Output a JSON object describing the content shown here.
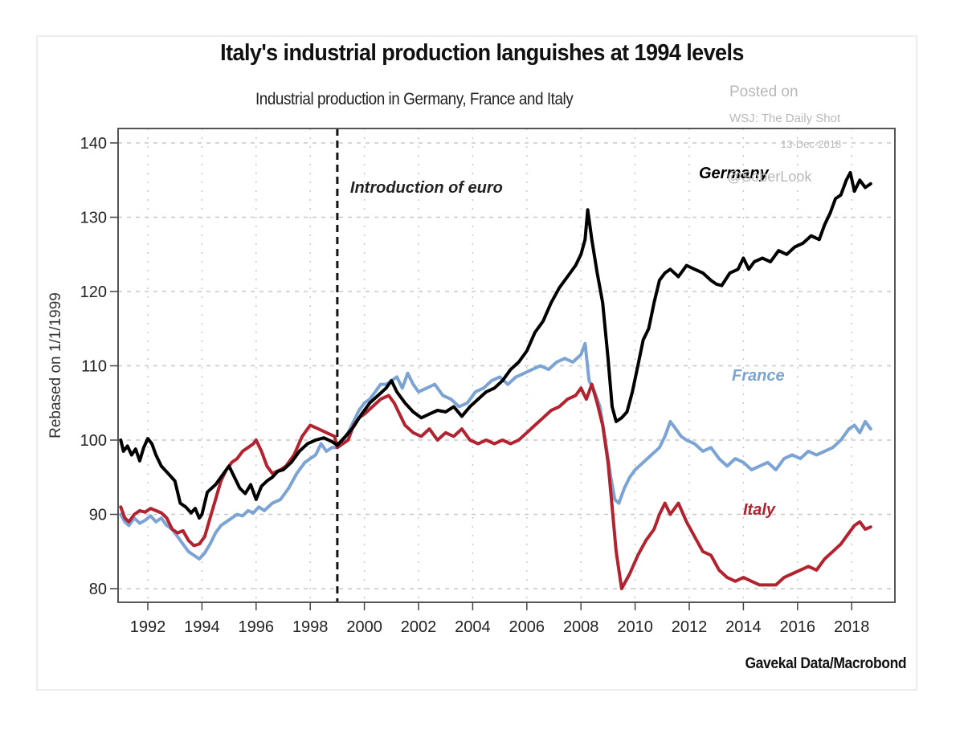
{
  "chart_data": {
    "type": "line",
    "title": "Italy's industrial production languishes at 1994 levels",
    "subtitle": "Industrial production in Germany, France and Italy",
    "xlabel": "",
    "ylabel": "Rebased on 1/1/1999",
    "xlim": [
      1990.9,
      2019.6
    ],
    "ylim": [
      78,
      142
    ],
    "yticks": [
      80,
      90,
      100,
      110,
      120,
      130,
      140
    ],
    "xticks": [
      1992,
      1994,
      1996,
      1998,
      2000,
      2002,
      2004,
      2006,
      2008,
      2010,
      2012,
      2014,
      2016,
      2018
    ],
    "grid": true,
    "source": "Gavekal Data/Macrobond",
    "annotations": [
      {
        "text": "Introduction of euro",
        "x": 1999.0,
        "type": "vertical-dashed-line"
      }
    ],
    "series": [
      {
        "name": "Germany",
        "color": "#000000",
        "label_position": "top-right",
        "x": [
          1991.0,
          1991.1,
          1991.25,
          1991.4,
          1991.55,
          1991.7,
          1991.85,
          1992.0,
          1992.15,
          1992.3,
          1992.5,
          1992.75,
          1993.0,
          1993.2,
          1993.4,
          1993.6,
          1993.75,
          1993.9,
          1994.0,
          1994.2,
          1994.5,
          1994.8,
          1995.0,
          1995.2,
          1995.4,
          1995.6,
          1995.8,
          1996.0,
          1996.2,
          1996.4,
          1996.6,
          1996.8,
          1997.0,
          1997.3,
          1997.6,
          1997.9,
          1998.2,
          1998.5,
          1998.8,
          1999.0,
          1999.3,
          1999.6,
          1999.9,
          2000.2,
          2000.5,
          2000.8,
          2001.0,
          2001.2,
          2001.5,
          2001.8,
          2002.1,
          2002.4,
          2002.7,
          2003.0,
          2003.3,
          2003.6,
          2003.9,
          2004.2,
          2004.5,
          2004.8,
          2005.1,
          2005.4,
          2005.7,
          2006.0,
          2006.3,
          2006.6,
          2006.9,
          2007.2,
          2007.5,
          2007.8,
          2008.0,
          2008.15,
          2008.25,
          2008.4,
          2008.6,
          2008.8,
          2009.0,
          2009.15,
          2009.3,
          2009.5,
          2009.7,
          2009.9,
          2010.1,
          2010.3,
          2010.5,
          2010.7,
          2010.9,
          2011.1,
          2011.3,
          2011.6,
          2011.9,
          2012.2,
          2012.5,
          2012.8,
          2013.0,
          2013.2,
          2013.5,
          2013.8,
          2014.0,
          2014.2,
          2014.4,
          2014.7,
          2015.0,
          2015.3,
          2015.6,
          2015.9,
          2016.2,
          2016.5,
          2016.8,
          2017.0,
          2017.2,
          2017.4,
          2017.6,
          2017.8,
          2017.95,
          2018.1,
          2018.3,
          2018.5,
          2018.7
        ],
        "values": [
          100.0,
          98.5,
          99.2,
          98.0,
          98.8,
          97.2,
          99.0,
          100.2,
          99.5,
          98.0,
          96.5,
          95.5,
          94.5,
          91.5,
          91.0,
          90.2,
          90.8,
          89.5,
          90.0,
          93.0,
          94.0,
          95.5,
          96.5,
          95.0,
          93.5,
          92.8,
          94.0,
          92.0,
          93.8,
          94.5,
          95.0,
          95.8,
          96.0,
          97.0,
          98.5,
          99.5,
          100.0,
          100.3,
          99.8,
          99.3,
          100.5,
          101.8,
          103.5,
          105.0,
          106.0,
          107.0,
          108.0,
          106.5,
          105.0,
          103.8,
          103.0,
          103.5,
          104.0,
          103.8,
          104.5,
          103.2,
          104.5,
          105.5,
          106.5,
          107.0,
          108.0,
          109.5,
          110.5,
          112.0,
          114.5,
          116.0,
          118.5,
          120.5,
          122.0,
          123.5,
          125.0,
          127.0,
          131.0,
          127.0,
          122.5,
          118.5,
          111.0,
          104.5,
          102.5,
          103.0,
          103.8,
          106.5,
          110.0,
          113.5,
          115.0,
          118.5,
          121.5,
          122.5,
          123.0,
          122.0,
          123.5,
          123.0,
          122.5,
          121.5,
          121.0,
          120.8,
          122.5,
          123.0,
          124.5,
          123.0,
          124.0,
          124.5,
          124.0,
          125.5,
          125.0,
          126.0,
          126.5,
          127.5,
          127.0,
          129.0,
          130.5,
          132.5,
          133.0,
          135.0,
          136.0,
          133.5,
          135.0,
          134.0,
          134.5
        ]
      },
      {
        "name": "France",
        "color": "#7ba3d4",
        "label_position": "middle-right",
        "x": [
          1991.0,
          1991.15,
          1991.3,
          1991.5,
          1991.7,
          1991.9,
          1992.1,
          1992.3,
          1992.5,
          1992.7,
          1992.9,
          1993.1,
          1993.3,
          1993.5,
          1993.7,
          1993.9,
          1994.1,
          1994.3,
          1994.5,
          1994.7,
          1994.9,
          1995.1,
          1995.3,
          1995.5,
          1995.7,
          1995.9,
          1996.1,
          1996.3,
          1996.6,
          1996.9,
          1997.2,
          1997.5,
          1997.8,
          1998.0,
          1998.2,
          1998.4,
          1998.6,
          1998.8,
          1999.0,
          1999.2,
          1999.4,
          1999.6,
          1999.8,
          2000.0,
          2000.2,
          2000.4,
          2000.6,
          2000.8,
          2001.0,
          2001.2,
          2001.4,
          2001.6,
          2001.8,
          2002.0,
          2002.3,
          2002.6,
          2002.9,
          2003.2,
          2003.5,
          2003.8,
          2004.1,
          2004.4,
          2004.7,
          2005.0,
          2005.3,
          2005.6,
          2005.9,
          2006.2,
          2006.5,
          2006.8,
          2007.1,
          2007.4,
          2007.7,
          2008.0,
          2008.15,
          2008.3,
          2008.5,
          2008.7,
          2008.9,
          2009.1,
          2009.25,
          2009.4,
          2009.6,
          2009.8,
          2010.0,
          2010.3,
          2010.6,
          2010.9,
          2011.1,
          2011.3,
          2011.5,
          2011.7,
          2011.9,
          2012.2,
          2012.5,
          2012.8,
          2013.1,
          2013.4,
          2013.7,
          2014.0,
          2014.3,
          2014.6,
          2014.9,
          2015.2,
          2015.5,
          2015.8,
          2016.1,
          2016.4,
          2016.7,
          2017.0,
          2017.3,
          2017.6,
          2017.9,
          2018.1,
          2018.3,
          2018.5,
          2018.7
        ],
        "values": [
          90.0,
          89.0,
          88.5,
          89.5,
          88.8,
          89.2,
          89.8,
          89.0,
          89.5,
          88.5,
          88.0,
          87.0,
          86.0,
          85.0,
          84.5,
          84.0,
          84.8,
          86.0,
          87.5,
          88.5,
          89.0,
          89.5,
          90.0,
          89.8,
          90.5,
          90.2,
          91.0,
          90.5,
          91.5,
          92.0,
          93.5,
          95.5,
          97.0,
          97.5,
          98.0,
          99.5,
          98.5,
          99.0,
          99.0,
          99.8,
          101.0,
          102.5,
          104.0,
          105.0,
          105.5,
          106.5,
          107.5,
          107.5,
          108.0,
          108.5,
          107.0,
          109.0,
          107.5,
          106.5,
          107.0,
          107.5,
          106.0,
          105.5,
          104.5,
          105.0,
          106.5,
          107.0,
          108.0,
          108.5,
          107.5,
          108.5,
          109.0,
          109.5,
          110.0,
          109.5,
          110.5,
          111.0,
          110.5,
          111.5,
          113.0,
          108.0,
          106.5,
          104.5,
          100.0,
          95.0,
          92.0,
          91.5,
          93.5,
          95.0,
          96.0,
          97.0,
          98.0,
          99.0,
          100.5,
          102.5,
          101.5,
          100.5,
          100.0,
          99.5,
          98.5,
          99.0,
          97.5,
          96.5,
          97.5,
          97.0,
          96.0,
          96.5,
          97.0,
          96.0,
          97.5,
          98.0,
          97.5,
          98.5,
          98.0,
          98.5,
          99.0,
          100.0,
          101.5,
          102.0,
          101.0,
          102.5,
          101.5
        ]
      },
      {
        "name": "Italy",
        "color": "#b3222f",
        "label_position": "lower-right",
        "x": [
          1991.0,
          1991.15,
          1991.3,
          1991.5,
          1991.7,
          1991.9,
          1992.1,
          1992.3,
          1992.5,
          1992.7,
          1992.9,
          1993.1,
          1993.3,
          1993.5,
          1993.7,
          1993.9,
          1994.1,
          1994.3,
          1994.5,
          1994.7,
          1994.9,
          1995.1,
          1995.3,
          1995.5,
          1995.7,
          1995.9,
          1996.0,
          1996.2,
          1996.4,
          1996.6,
          1996.9,
          1997.1,
          1997.4,
          1997.7,
          1998.0,
          1998.3,
          1998.6,
          1998.9,
          1999.0,
          1999.2,
          1999.4,
          1999.6,
          1999.8,
          2000.0,
          2000.3,
          2000.6,
          2000.9,
          2001.1,
          2001.3,
          2001.5,
          2001.8,
          2002.1,
          2002.4,
          2002.7,
          2003.0,
          2003.3,
          2003.6,
          2003.9,
          2004.2,
          2004.5,
          2004.8,
          2005.1,
          2005.4,
          2005.7,
          2006.0,
          2006.3,
          2006.6,
          2006.9,
          2007.2,
          2007.5,
          2007.8,
          2008.0,
          2008.2,
          2008.4,
          2008.6,
          2008.8,
          2009.0,
          2009.15,
          2009.3,
          2009.5,
          2009.8,
          2010.1,
          2010.4,
          2010.7,
          2010.9,
          2011.1,
          2011.3,
          2011.6,
          2011.9,
          2012.2,
          2012.5,
          2012.8,
          2013.1,
          2013.4,
          2013.7,
          2014.0,
          2014.3,
          2014.6,
          2014.9,
          2015.2,
          2015.5,
          2015.8,
          2016.1,
          2016.4,
          2016.7,
          2017.0,
          2017.3,
          2017.6,
          2017.9,
          2018.1,
          2018.3,
          2018.5,
          2018.7
        ],
        "values": [
          91.0,
          89.5,
          89.0,
          90.0,
          90.5,
          90.3,
          90.8,
          90.5,
          90.2,
          89.5,
          88.0,
          87.5,
          87.8,
          86.5,
          85.8,
          86.0,
          87.0,
          89.5,
          92.0,
          94.5,
          96.0,
          97.0,
          97.5,
          98.5,
          99.0,
          99.5,
          100.0,
          98.5,
          96.5,
          95.5,
          96.0,
          96.5,
          98.0,
          100.5,
          102.0,
          101.5,
          101.0,
          100.5,
          99.0,
          99.5,
          100.0,
          102.0,
          103.0,
          103.5,
          104.5,
          105.5,
          106.0,
          105.0,
          103.5,
          102.0,
          101.0,
          100.5,
          101.5,
          100.0,
          101.0,
          100.5,
          101.5,
          100.0,
          99.5,
          100.0,
          99.5,
          100.0,
          99.5,
          100.0,
          101.0,
          102.0,
          103.0,
          104.0,
          104.5,
          105.5,
          106.0,
          107.0,
          105.5,
          107.5,
          105.0,
          102.0,
          97.0,
          91.0,
          85.0,
          80.0,
          82.0,
          84.5,
          86.5,
          88.0,
          90.0,
          91.5,
          90.0,
          91.5,
          89.0,
          87.0,
          85.0,
          84.5,
          82.5,
          81.5,
          81.0,
          81.5,
          81.0,
          80.5,
          80.5,
          80.5,
          81.5,
          82.0,
          82.5,
          83.0,
          82.5,
          84.0,
          85.0,
          86.0,
          87.5,
          88.5,
          89.0,
          88.0,
          88.3
        ]
      }
    ]
  },
  "watermark": {
    "line1": "Posted on",
    "line2": "WSJ: The Daily Shot",
    "line3": "13-Dec-2018",
    "line4": "@SoberLook"
  }
}
